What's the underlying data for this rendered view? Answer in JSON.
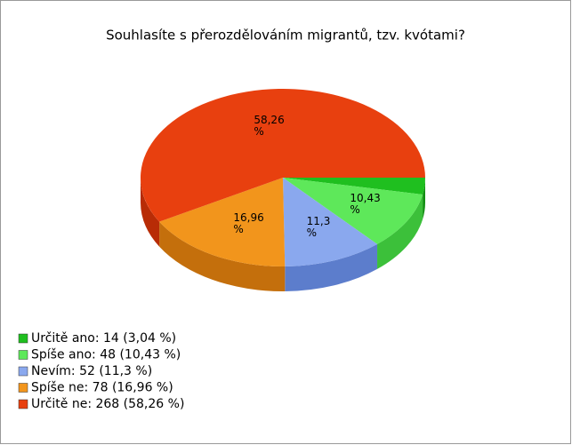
{
  "chart_data": {
    "type": "pie3d",
    "title": "Souhlasíte s přerozdělováním migrantů, tzv. kvótami?",
    "categories": [
      "Určitě ano",
      "Spíše ano",
      "Nevím",
      "Spíše ne",
      "Určitě ne"
    ],
    "values": [
      3.04,
      10.43,
      11.3,
      16.96,
      58.26
    ],
    "value_labels": [
      null,
      "10,43 %",
      "11,3 %",
      "16,96 %",
      "58,26 %"
    ],
    "legend_labels": [
      "Určitě ano: 14 (3,04 %)",
      "Spíše ano: 48 (10,43 %)",
      "Nevím: 52 (11,3 %)",
      "Spíše ne: 78 (16,96 %)",
      "Určitě ne: 268 (58,26 %)"
    ],
    "colors": [
      "#1fbf1f",
      "#5ee85a",
      "#8aa8ee",
      "#f2951c",
      "#e8400f"
    ],
    "side_colors": [
      "#139013",
      "#3cc03a",
      "#5c7dcc",
      "#c46f0c",
      "#b82c06"
    ],
    "legend": "bottom-left"
  }
}
